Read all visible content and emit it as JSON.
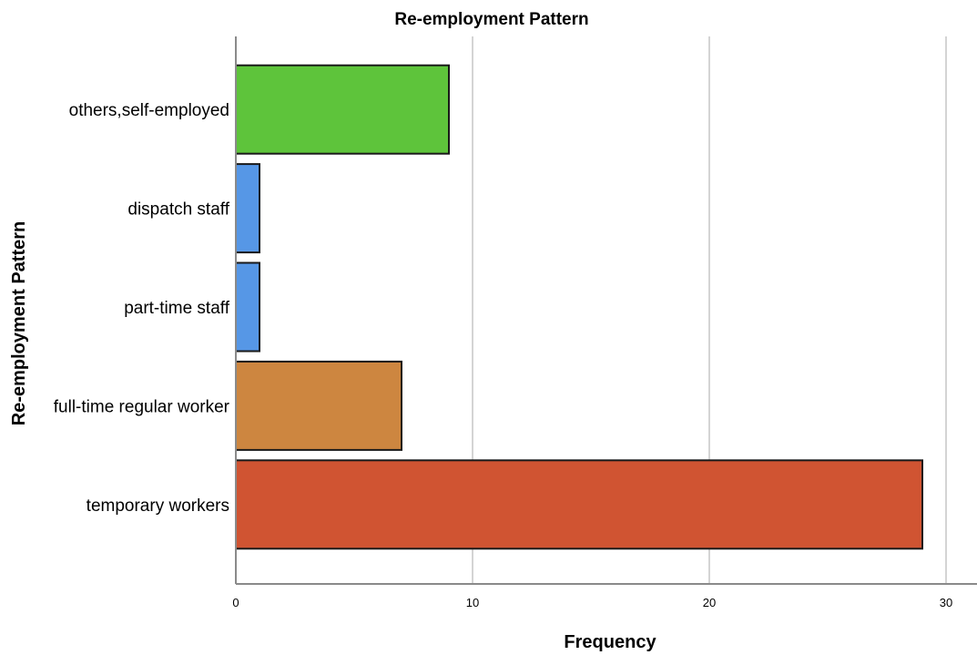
{
  "chart_data": {
    "type": "bar",
    "orientation": "horizontal",
    "title": "Re-employment Pattern",
    "xlabel": "Frequency",
    "ylabel": "Re-employment Pattern",
    "categories": [
      "others,self-employed",
      "dispatch staff",
      "part-time staff",
      "full-time regular worker",
      "temporary workers"
    ],
    "values": [
      9,
      1,
      1,
      7,
      29
    ],
    "colors": [
      "#5ec43b",
      "#5697e6",
      "#5697e6",
      "#cd8640",
      "#d05432"
    ],
    "xlim": [
      0,
      30
    ],
    "xticks": [
      "0",
      "10",
      "20",
      "30"
    ],
    "grid": "vertical",
    "legend": "none"
  }
}
